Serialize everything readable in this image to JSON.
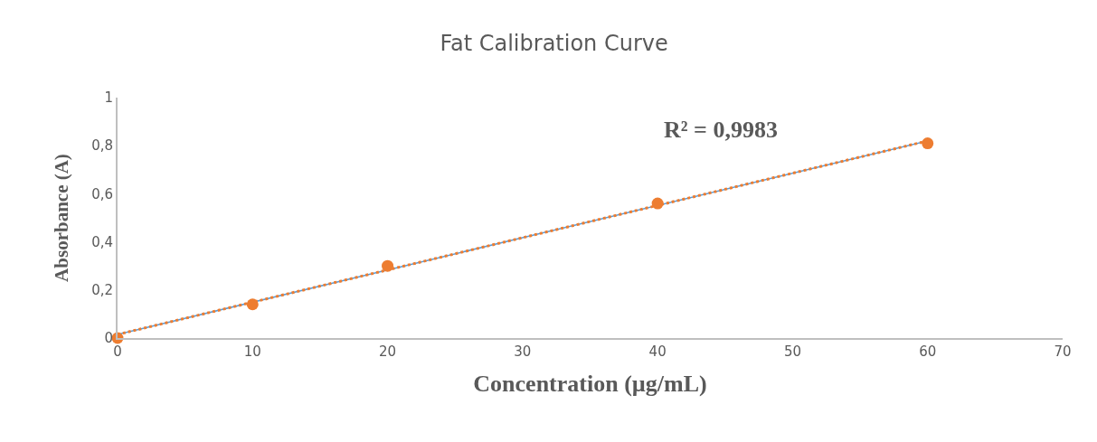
{
  "chart_data": {
    "type": "scatter",
    "title": "Fat Calibration Curve",
    "xlabel": "Concentration (µg/mL)",
    "ylabel": "Absorbance (A)",
    "annotations": [
      "R² = 0,9983"
    ],
    "series": [
      {
        "type": "line",
        "color": "#5b9bd5",
        "x": [
          0,
          60
        ],
        "values": [
          0.015,
          0.82
        ],
        "line_style": "solid",
        "marker": "none"
      },
      {
        "type": "line",
        "color": "#ed7d31",
        "x": [
          0,
          60
        ],
        "values": [
          0.015,
          0.82
        ],
        "line_style": "dotted",
        "marker": "none"
      },
      {
        "color": "#ed7d31",
        "x": [
          0,
          10,
          20,
          40,
          60
        ],
        "values": [
          0,
          0.14,
          0.3,
          0.56,
          0.81
        ],
        "marker": "circle"
      }
    ],
    "xlim": [
      0,
      70
    ],
    "xticks": [
      0,
      10,
      20,
      30,
      40,
      50,
      60,
      70
    ],
    "ylim": [
      0,
      1
    ],
    "yticks": [
      0,
      {
        "value": 0.2,
        "label": "0,2"
      },
      {
        "value": 0.4,
        "label": "0,4"
      },
      {
        "value": 0.6,
        "label": "0,6"
      },
      {
        "value": 0.8,
        "label": "0,8"
      },
      1
    ],
    "grid": false
  }
}
